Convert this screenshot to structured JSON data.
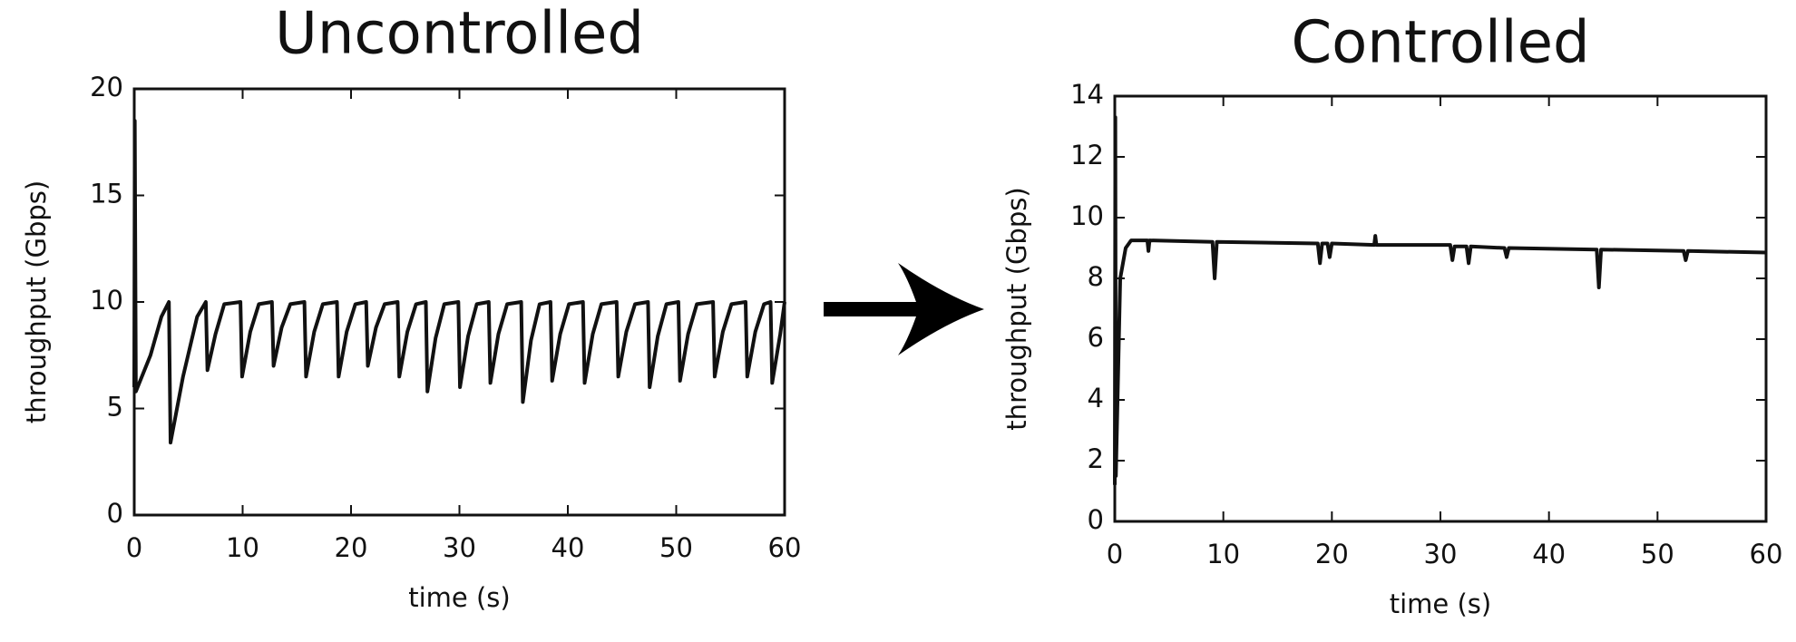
{
  "chart_data": [
    {
      "type": "line",
      "title": "Uncontrolled",
      "x_label": "time (s)",
      "y_label": "throughput (Gbps)",
      "color": "#111111",
      "xlim": [
        0,
        60
      ],
      "xticks": [
        0,
        10,
        20,
        30,
        40,
        50,
        60
      ],
      "ylim": [
        0,
        20
      ],
      "yticks": [
        0,
        5,
        10,
        15,
        20
      ],
      "x": [
        0,
        0.05,
        0.15,
        1.5,
        2.5,
        3.2,
        3.35,
        4.5,
        5.8,
        6.6,
        6.75,
        7.5,
        8.3,
        9.8,
        9.95,
        10.7,
        11.5,
        12.7,
        12.85,
        13.6,
        14.4,
        15.7,
        15.85,
        16.6,
        17.4,
        18.7,
        18.85,
        19.6,
        20.4,
        21.4,
        21.55,
        22.3,
        23.1,
        24.3,
        24.45,
        25.2,
        26.0,
        26.9,
        27.05,
        27.8,
        28.6,
        29.9,
        30.05,
        30.8,
        31.6,
        32.7,
        32.85,
        33.6,
        34.4,
        35.7,
        35.85,
        36.6,
        37.4,
        38.4,
        38.55,
        39.3,
        40.1,
        41.4,
        41.55,
        42.3,
        43.1,
        44.5,
        44.65,
        45.4,
        46.2,
        47.4,
        47.55,
        48.3,
        49.1,
        50.2,
        50.35,
        51.1,
        51.9,
        53.4,
        53.55,
        54.3,
        55.1,
        56.4,
        56.55,
        57.3,
        58.1,
        58.7,
        58.85,
        59.6,
        60
      ],
      "values": [
        6.0,
        18.5,
        5.8,
        7.5,
        9.3,
        10.0,
        3.4,
        6.5,
        9.3,
        10.0,
        6.8,
        8.5,
        9.9,
        10.0,
        6.5,
        8.6,
        9.9,
        10.0,
        7.0,
        8.8,
        9.9,
        10.0,
        6.5,
        8.6,
        9.9,
        10.0,
        6.5,
        8.6,
        9.9,
        10.0,
        7.0,
        8.8,
        9.9,
        10.0,
        6.5,
        8.6,
        9.9,
        10.0,
        5.8,
        8.3,
        9.9,
        10.0,
        6.0,
        8.4,
        9.9,
        10.0,
        6.2,
        8.5,
        9.9,
        10.0,
        5.3,
        8.2,
        9.9,
        10.0,
        6.3,
        8.5,
        9.9,
        10.0,
        6.2,
        8.5,
        9.9,
        10.0,
        6.5,
        8.6,
        9.9,
        10.0,
        6.0,
        8.4,
        9.9,
        10.0,
        6.3,
        8.5,
        9.9,
        10.0,
        6.5,
        8.6,
        9.9,
        10.0,
        6.5,
        8.6,
        9.9,
        10.0,
        6.2,
        8.5,
        10.0
      ]
    },
    {
      "type": "line",
      "title": "Controlled",
      "x_label": "time (s)",
      "y_label": "throughput (Gbps)",
      "color": "#111111",
      "xlim": [
        0,
        60
      ],
      "xticks": [
        0,
        10,
        20,
        30,
        40,
        50,
        60
      ],
      "ylim": [
        0,
        14
      ],
      "yticks": [
        0,
        2,
        4,
        6,
        8,
        10,
        12,
        14
      ],
      "x": [
        0,
        0.05,
        0.1,
        0.5,
        1.0,
        1.5,
        3.0,
        3.1,
        3.2,
        9.0,
        9.2,
        9.4,
        18.7,
        18.9,
        19.1,
        19.6,
        19.8,
        20.0,
        23.9,
        24.0,
        24.1,
        30.9,
        31.1,
        31.3,
        32.4,
        32.6,
        32.8,
        35.9,
        36.1,
        36.3,
        44.4,
        44.6,
        44.8,
        52.4,
        52.6,
        52.8,
        60
      ],
      "values": [
        1.2,
        13.3,
        1.5,
        8.0,
        9.0,
        9.25,
        9.25,
        8.9,
        9.25,
        9.2,
        8.0,
        9.2,
        9.15,
        8.5,
        9.15,
        9.15,
        8.7,
        9.15,
        9.1,
        9.4,
        9.1,
        9.1,
        8.6,
        9.05,
        9.05,
        8.5,
        9.05,
        9.0,
        8.7,
        9.0,
        8.95,
        7.7,
        8.95,
        8.9,
        8.6,
        8.9,
        8.85
      ]
    }
  ]
}
